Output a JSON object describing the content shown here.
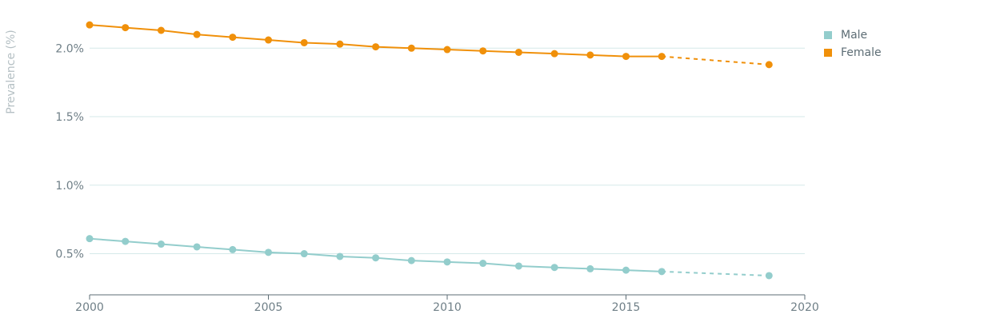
{
  "chart_data": {
    "type": "line",
    "title": "",
    "xlabel": "",
    "ylabel": "Prevalence (%)",
    "xlim": [
      2000,
      2020
    ],
    "ylim": [
      0.2,
      2.2
    ],
    "x_ticks": [
      2000,
      2005,
      2010,
      2015,
      2020
    ],
    "y_ticks": [
      0.5,
      1.0,
      1.5,
      2.0
    ],
    "y_tick_labels": [
      "0.5%",
      "1.0%",
      "1.5%",
      "2.0%"
    ],
    "grid": true,
    "legend_position": "top-right",
    "series": [
      {
        "name": "Male",
        "color": "#93cdcc",
        "x": [
          2000,
          2001,
          2002,
          2003,
          2004,
          2005,
          2006,
          2007,
          2008,
          2009,
          2010,
          2011,
          2012,
          2013,
          2014,
          2015,
          2016
        ],
        "values": [
          0.61,
          0.59,
          0.57,
          0.55,
          0.53,
          0.51,
          0.5,
          0.48,
          0.47,
          0.45,
          0.44,
          0.43,
          0.41,
          0.4,
          0.39,
          0.38,
          0.37
        ],
        "projected": {
          "x": [
            2016,
            2019
          ],
          "values": [
            0.37,
            0.34
          ]
        }
      },
      {
        "name": "Female",
        "color": "#f0900a",
        "x": [
          2000,
          2001,
          2002,
          2003,
          2004,
          2005,
          2006,
          2007,
          2008,
          2009,
          2010,
          2011,
          2012,
          2013,
          2014,
          2015,
          2016
        ],
        "values": [
          2.17,
          2.15,
          2.13,
          2.1,
          2.08,
          2.06,
          2.04,
          2.03,
          2.01,
          2.0,
          1.99,
          1.98,
          1.97,
          1.96,
          1.95,
          1.94,
          1.94
        ],
        "projected": {
          "x": [
            2016,
            2019
          ],
          "values": [
            1.94,
            1.88
          ]
        }
      }
    ]
  }
}
